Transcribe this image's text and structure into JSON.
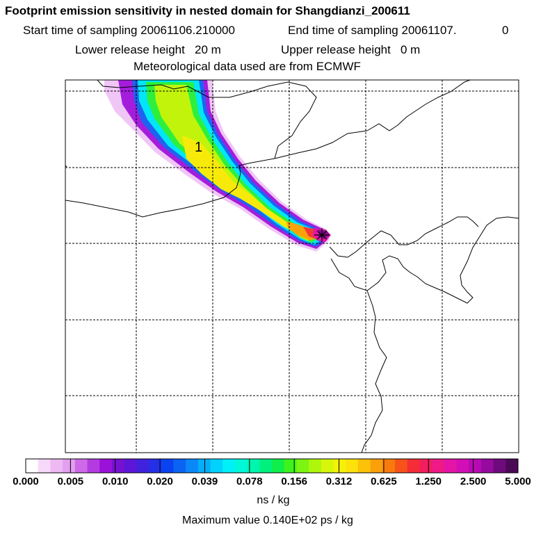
{
  "header": {
    "title": "Footprint emission sensitivity in nested domain for Shangdianzi_200611",
    "start_label": "Start time of sampling",
    "start_value": "20061106.210000",
    "end_label": "End time of sampling",
    "end_value": "20061107.",
    "end_suffix": "0",
    "lower_label": "Lower release height",
    "lower_value": "20 m",
    "upper_label": "Upper release height",
    "upper_value": "0 m",
    "met_line": "Meteorological data used are from ECMWF"
  },
  "map": {
    "contour_label": "1"
  },
  "colorbar": {
    "labels": [
      "0.000",
      "0.005",
      "0.010",
      "0.020",
      "0.039",
      "0.078",
      "0.156",
      "0.312",
      "0.625",
      "1.250",
      "2.500",
      "5.000"
    ],
    "colors": [
      "#ffffff",
      "#f7d8f9",
      "#eeb8f3",
      "#e39ff0",
      "#cd6ae8",
      "#b33be0",
      "#9a12d8",
      "#7711d2",
      "#5d16d8",
      "#4022dd",
      "#2530e6",
      "#0a43f0",
      "#0b63f4",
      "#0a88f7",
      "#05aef9",
      "#00d2fb",
      "#00f0f8",
      "#00f8d8",
      "#00f6ae",
      "#00f07d",
      "#10ee4a",
      "#3ff21c",
      "#7bf511",
      "#aef60c",
      "#d6f60a",
      "#f4f20a",
      "#fde10a",
      "#fcc109",
      "#faa00a",
      "#f87a0d",
      "#f6521a",
      "#f42d37",
      "#f31e60",
      "#ef1a86",
      "#e414a6",
      "#d20fb6",
      "#b80ab4",
      "#960a9e",
      "#6f0a7d",
      "#4a0a55"
    ],
    "units": "ns / kg",
    "max_value_text": "Maximum value  0.140E+02 ps / kg"
  }
}
